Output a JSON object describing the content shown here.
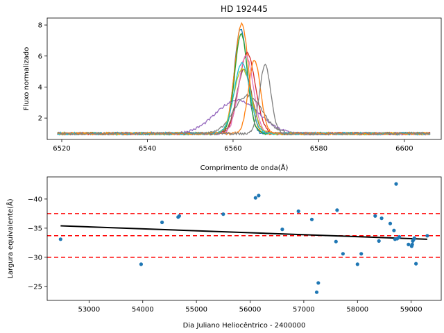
{
  "chart_data": [
    {
      "type": "line",
      "title": "HD 192445",
      "xlabel": "Comprimento de onda($\\AA$)",
      "xlabel_display": "Comprimento de onda(Å)",
      "ylabel": "Fluxo normalizado",
      "xlim": [
        6516.6,
        6608.6
      ],
      "ylim": [
        0.62,
        8.45
      ],
      "xticks": [
        6520,
        6540,
        6560,
        6580,
        6600
      ],
      "yticks": [
        2,
        4,
        6,
        8
      ],
      "grid": false,
      "legend": null,
      "continuum_level": 1.0,
      "x_range": [
        6519,
        6606
      ],
      "series": [
        {
          "color": "#1f77b4",
          "peak": 7.75,
          "center": 6561.8,
          "width": 1.5
        },
        {
          "color": "#ff7f0e",
          "peak": 8.1,
          "center": 6562.0,
          "width": 1.6
        },
        {
          "color": "#2ca02c",
          "peak": 7.4,
          "center": 6561.9,
          "width": 1.5
        },
        {
          "color": "#d62728",
          "peak": 6.2,
          "center": 6563.3,
          "width": 1.9
        },
        {
          "color": "#9467bd",
          "peak": 3.15,
          "center": 6561.0,
          "width": 5.0
        },
        {
          "color": "#8c564b",
          "peak": 5.1,
          "center": 6562.6,
          "width": 1.8
        },
        {
          "color": "#e377c2",
          "peak": 6.05,
          "center": 6563.0,
          "width": 1.7
        },
        {
          "color": "#7f7f7f",
          "peak": 3.45,
          "center": 6563.5,
          "width": 3.3
        },
        {
          "color": "#bcbd22",
          "peak": 5.2,
          "center": 6562.2,
          "width": 2.0
        },
        {
          "color": "#17becf",
          "peak": 5.6,
          "center": 6562.1,
          "width": 1.8
        },
        {
          "color": "#ff7f0e",
          "peak": 5.75,
          "center": 6565.0,
          "width": 1.4
        },
        {
          "color": "#7f7f7f",
          "peak": 5.45,
          "center": 6567.5,
          "width": 1.3
        }
      ]
    },
    {
      "type": "scatter",
      "xlabel": "Dia Juliano Heliocêntrico - 2400000",
      "ylabel": "Largura equivalente($\\AA$)",
      "ylabel_display": "Largura equivalente(Å)",
      "xlim": [
        52220,
        59560
      ],
      "ylim": [
        -43.8,
        -22.6
      ],
      "y_inverted": true,
      "xticks": [
        53000,
        54000,
        55000,
        56000,
        57000,
        58000,
        59000
      ],
      "yticks": [
        -40,
        -35,
        -30,
        -25
      ],
      "grid": false,
      "legend": null,
      "points": {
        "x": [
          52470,
          53970,
          54360,
          54660,
          54680,
          55500,
          56100,
          56160,
          56600,
          56900,
          57150,
          57240,
          57270,
          57600,
          57620,
          57730,
          58000,
          58070,
          58330,
          58400,
          58450,
          58610,
          58680,
          58700,
          58720,
          58740,
          58780,
          58950,
          59010,
          59020,
          59030,
          59050,
          59060,
          59090,
          59300
        ],
        "y": [
          -33.1,
          -28.8,
          -36.0,
          -36.9,
          -37.1,
          -37.4,
          -40.2,
          -40.6,
          -34.8,
          -37.9,
          -36.5,
          -24.0,
          -25.6,
          -32.7,
          -38.1,
          -30.6,
          -28.8,
          -30.6,
          -37.1,
          -32.8,
          -36.7,
          -35.8,
          -34.6,
          -33.1,
          -42.6,
          -33.2,
          -33.5,
          -32.2,
          -31.9,
          -32.2,
          -32.8,
          -33.1,
          -33.3,
          -28.9,
          -33.7
        ]
      },
      "trend_line": {
        "x": [
          52470,
          59300
        ],
        "y": [
          -35.4,
          -33.1
        ]
      },
      "reference_lines": {
        "y": [
          -37.5,
          -33.7,
          -30.0
        ],
        "color": "#ff0000",
        "style": "dashed"
      },
      "point_color": "#1f77b4"
    }
  ]
}
